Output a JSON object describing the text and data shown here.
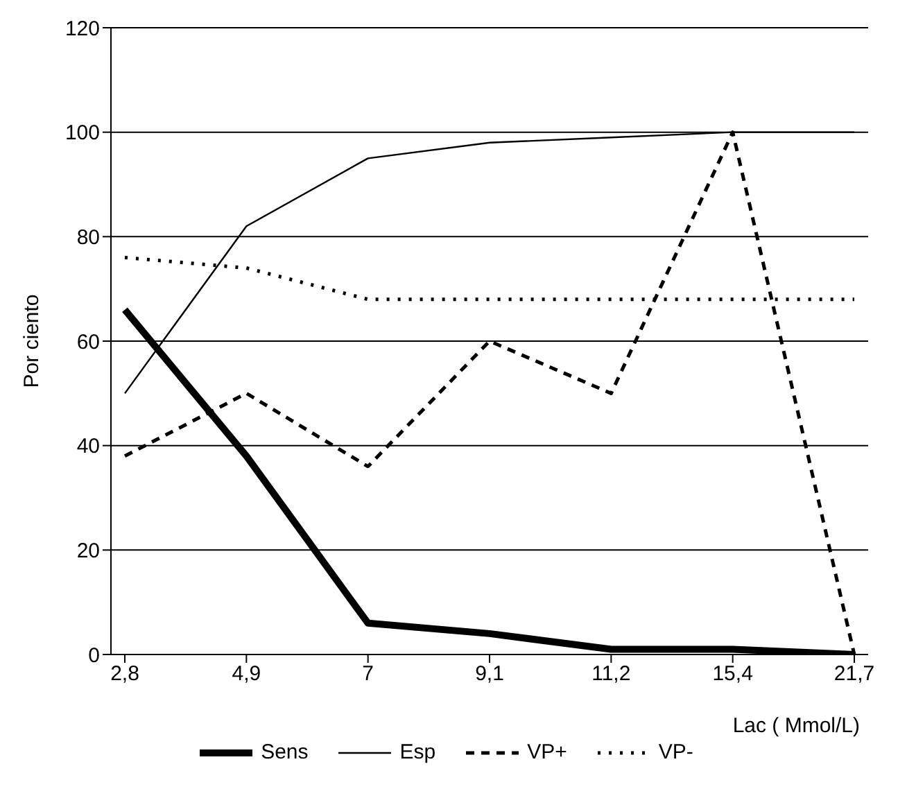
{
  "chart_data": {
    "type": "line",
    "xlabel": "Lac ( Mmol/L)",
    "ylabel": "Por ciento",
    "categories": [
      "2,8",
      "4,9",
      "7",
      "9,1",
      "11,2",
      "15,4",
      "21,7"
    ],
    "series": [
      {
        "name": "Sens",
        "color": "#000000",
        "line_style": "solid",
        "values": [
          66,
          38,
          6,
          4,
          1,
          1,
          0
        ]
      },
      {
        "name": "Esp",
        "color": "#000000",
        "line_style": "solid",
        "values": [
          50,
          82,
          95,
          98,
          99,
          100,
          100
        ]
      },
      {
        "name": "VP+",
        "color": "#000000",
        "line_style": "dashed",
        "values": [
          38,
          50,
          36,
          60,
          50,
          100,
          0
        ]
      },
      {
        "name": "VP-",
        "color": "#000000",
        "line_style": "dotted",
        "values": [
          76,
          74,
          68,
          68,
          68,
          68,
          68
        ]
      }
    ],
    "ylim": [
      0,
      120
    ],
    "yticks": [
      0,
      20,
      40,
      60,
      80,
      100,
      120
    ],
    "grid": "y",
    "legend": "bottom",
    "marker": "none"
  }
}
